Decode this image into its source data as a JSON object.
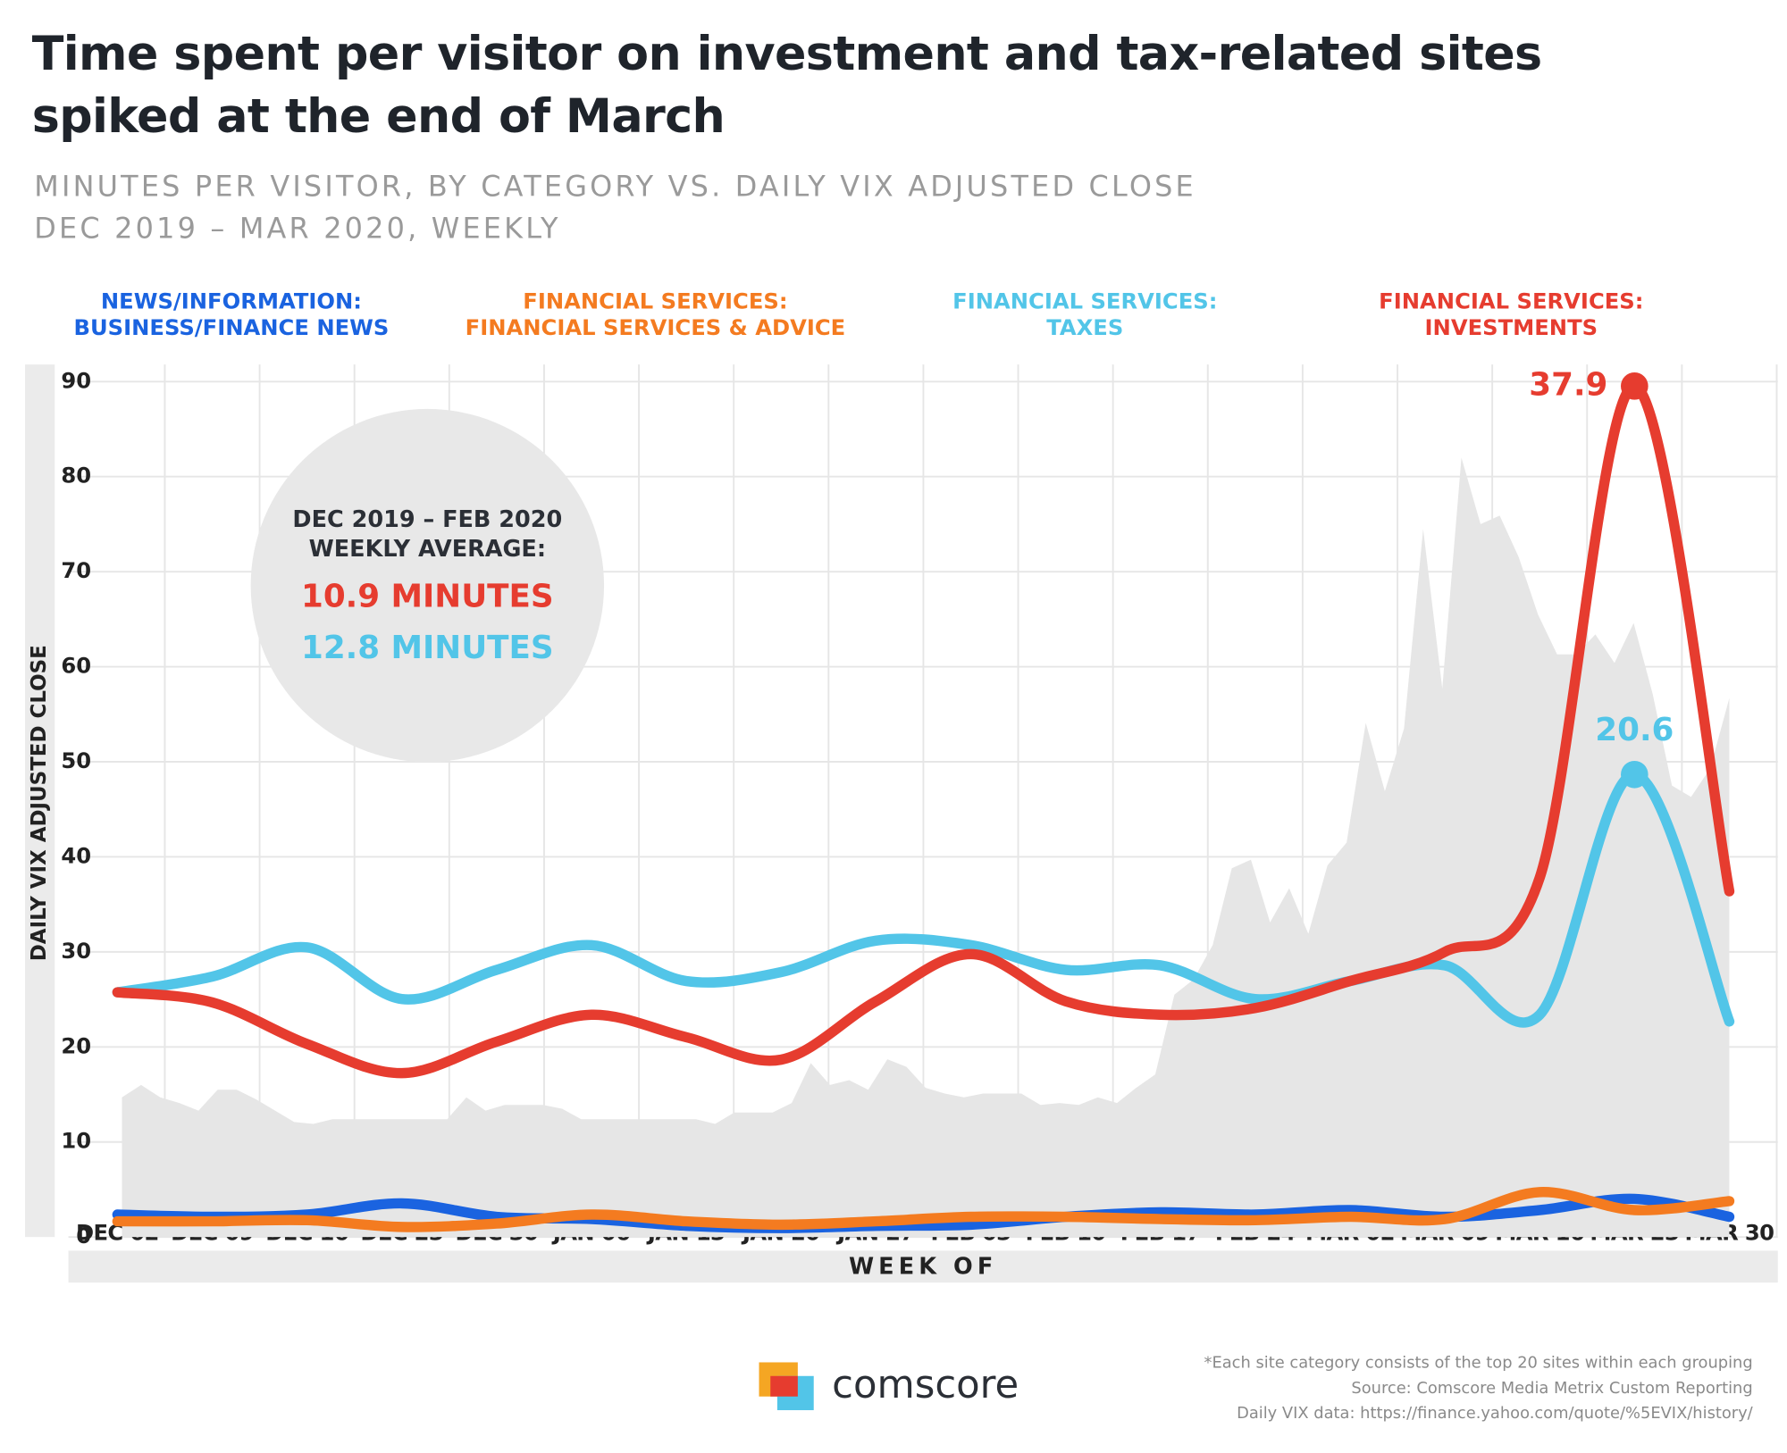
{
  "chart_data": {
    "type": "line",
    "title": "Time spent per visitor on investment and tax-related sites\nspiked at the end of March",
    "subtitle": "MINUTES PER VISITOR, BY CATEGORY VS. DAILY VIX ADJUSTED CLOSE\nDEC 2019 – MAR 2020, WEEKLY",
    "x_label": "WEEK OF",
    "y_label": "DAILY VIX ADJUSTED CLOSE",
    "categories": [
      "DEC 02",
      "DEC 09",
      "DEC 16",
      "DEC 23",
      "DEC 30",
      "JAN 06",
      "JAN 13",
      "JAN 20",
      "JAN 27",
      "FEB 03",
      "FEB 10",
      "FEB 17",
      "FEB 24",
      "MAR 02",
      "MAR 09",
      "MAR 16",
      "MAR 23",
      "MAR 30"
    ],
    "ylim": [
      0,
      90
    ],
    "yticks": [
      0,
      10,
      20,
      30,
      40,
      50,
      60,
      70,
      80,
      90
    ],
    "y2lim": [
      0,
      38.1
    ],
    "grid": true,
    "area": {
      "color": "#e6e6e6",
      "values": [
        14.7,
        16,
        14.7,
        14.1,
        13.3,
        15.5,
        15.5,
        14.5,
        13.3,
        12.1,
        11.9,
        12.4,
        12.4,
        12.4,
        12.4,
        12.4,
        12.4,
        12.4,
        14.7,
        13.3,
        13.9,
        13.9,
        13.9,
        13.5,
        12.4,
        12.4,
        12.4,
        12.4,
        12.4,
        12.4,
        12.4,
        11.9,
        13.1,
        13.1,
        13.1,
        14.1,
        18.3,
        16,
        16.5,
        15.5,
        18.7,
        17.9,
        15.7,
        15.1,
        14.7,
        15.1,
        15.1,
        15.1,
        13.9,
        14.1,
        13.9,
        14.7,
        14.1,
        15.7,
        17.1,
        25.5,
        27.1,
        30.7,
        38.8,
        39.7,
        33.1,
        36.7,
        31.9,
        39.1,
        41.5,
        54.1,
        46.9,
        53.5,
        74.5,
        57.7,
        82,
        75,
        75.9,
        71.5,
        65.5,
        61.3,
        61.3,
        63.4,
        60.4,
        64.6,
        57.1,
        47.5,
        46.3,
        49.3,
        56.7
      ]
    },
    "series": [
      {
        "name": "NEWS/INFORMATION:\nBUSINESS/FINANCE NEWS",
        "color": "#1a63e0",
        "axis": "y2",
        "values": [
          1.0,
          0.9,
          1.0,
          1.5,
          0.9,
          0.8,
          0.5,
          0.4,
          0.5,
          0.55,
          0.9,
          1.1,
          1.0,
          1.2,
          0.9,
          1.2,
          1.7,
          0.9
        ]
      },
      {
        "name": "FINANCIAL SERVICES:\nFINANCIAL SERVICES & ADVICE",
        "color": "#f47b20",
        "axis": "y2",
        "values": [
          0.7,
          0.7,
          0.75,
          0.45,
          0.6,
          1.0,
          0.7,
          0.55,
          0.7,
          0.9,
          0.9,
          0.8,
          0.75,
          0.9,
          0.8,
          2.0,
          1.2,
          1.6
        ]
      },
      {
        "name": "FINANCIAL SERVICES:\nTAXES",
        "color": "#52c5e8",
        "axis": "y2",
        "values": [
          10.9,
          11.6,
          12.9,
          10.6,
          11.9,
          13.0,
          11.4,
          11.8,
          13.2,
          13.0,
          11.9,
          12.1,
          10.6,
          11.4,
          12.1,
          9.9,
          20.6,
          9.6
        ]
      },
      {
        "name": "FINANCIAL SERVICES:\nINVESTMENTS",
        "color": "#e63c2f",
        "axis": "y2",
        "values": [
          10.9,
          10.45,
          8.6,
          7.3,
          8.7,
          9.9,
          8.9,
          7.9,
          10.5,
          12.6,
          10.5,
          9.9,
          10.2,
          11.4,
          12.7,
          16.0,
          37.9,
          15.4
        ]
      }
    ],
    "annotations": [
      "DEC 2019 – FEB 2020",
      "WEEKLY AVERAGE:",
      "10.9 MINUTES",
      "12.8 MINUTES"
    ],
    "notes": [
      "*Each site category consists of the top 20 sites within each grouping",
      "Source: Comscore Media Metrix Custom Reporting",
      "Daily VIX data: https://finance.yahoo.com/quote/%5EVIX/history/"
    ],
    "logo": "comscore"
  }
}
